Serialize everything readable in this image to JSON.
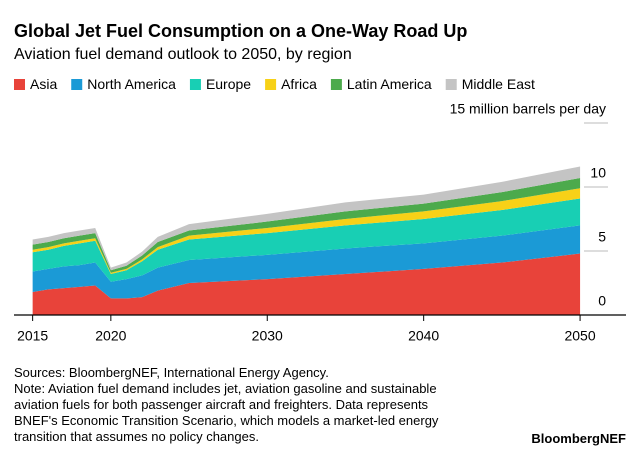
{
  "chart_data": {
    "type": "stacked-area",
    "title": "Global Jet Fuel Consumption on a One-Way Road Up",
    "subtitle": "Aviation fuel demand outlook to 2050, by region",
    "x": [
      2015,
      2016,
      2017,
      2018,
      2019,
      2020,
      2021,
      2022,
      2023,
      2025,
      2030,
      2035,
      2040,
      2045,
      2050
    ],
    "series": [
      {
        "name": "Asia",
        "color": "#e8433a",
        "values": [
          1.8,
          2.0,
          2.1,
          2.2,
          2.3,
          1.3,
          1.3,
          1.4,
          1.9,
          2.5,
          2.8,
          3.2,
          3.6,
          4.1,
          4.8
        ]
      },
      {
        "name": "North America",
        "color": "#1b9ad6",
        "values": [
          1.6,
          1.6,
          1.7,
          1.7,
          1.8,
          1.3,
          1.5,
          1.7,
          1.8,
          1.8,
          1.9,
          2.0,
          2.0,
          2.1,
          2.2
        ]
      },
      {
        "name": "Europe",
        "color": "#18cfb4",
        "values": [
          1.5,
          1.5,
          1.6,
          1.7,
          1.7,
          0.6,
          0.7,
          1.1,
          1.4,
          1.6,
          1.7,
          1.8,
          1.9,
          2.0,
          2.1
        ]
      },
      {
        "name": "Africa",
        "color": "#f7d117",
        "values": [
          0.2,
          0.2,
          0.2,
          0.2,
          0.2,
          0.1,
          0.1,
          0.15,
          0.2,
          0.3,
          0.4,
          0.5,
          0.6,
          0.7,
          0.8
        ]
      },
      {
        "name": "Latin America",
        "color": "#4caa4c",
        "values": [
          0.4,
          0.4,
          0.4,
          0.4,
          0.4,
          0.2,
          0.25,
          0.3,
          0.4,
          0.4,
          0.5,
          0.6,
          0.6,
          0.7,
          0.8
        ]
      },
      {
        "name": "Middle East",
        "color": "#c4c4c4",
        "values": [
          0.4,
          0.4,
          0.4,
          0.4,
          0.4,
          0.2,
          0.25,
          0.3,
          0.4,
          0.5,
          0.6,
          0.7,
          0.7,
          0.8,
          0.9
        ]
      }
    ],
    "xlim": [
      2014,
      2053
    ],
    "xticks": [
      2015,
      2020,
      2030,
      2040,
      2050
    ],
    "ylim": [
      0,
      15
    ],
    "yticks": [
      0,
      5,
      10,
      {
        "value": 15,
        "label": "15 million barrels per day"
      }
    ],
    "source": "Sources: BloombergNEF, International Energy Agency.",
    "note": "Note: Aviation fuel demand includes jet, aviation gasoline and sustainable aviation fuels for both passenger aircraft and freighters. Data represents BNEF's Economic Transition Scenario, which models a market-led energy transition that assumes no policy changes.",
    "credit": "BloombergNEF"
  }
}
